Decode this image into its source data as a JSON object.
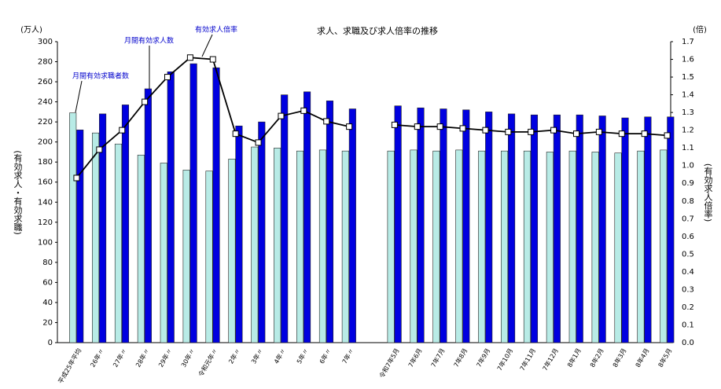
{
  "chart_data": {
    "type": "bar-line",
    "title": "求人、求職及び求人倍率の推移",
    "y_unit": "(万人)",
    "y2_unit": "(倍)",
    "ylabel": "(有効求人・有効求職)",
    "y2label": "(有効求人倍率)",
    "categories": [
      "平成25年平均",
      "26年〃",
      "27年〃",
      "28年〃",
      "29年〃",
      "30年〃",
      "令和元年〃",
      "2年〃",
      "3年〃",
      "4年〃",
      "5年〃",
      "6年〃",
      "7年〃",
      null,
      "令和7年5月",
      "7年6月",
      "7年7月",
      "7年8月",
      "7年9月",
      "7年10月",
      "7年11月",
      "7年12月",
      "8年1月",
      "8年2月",
      "8年3月",
      "8年4月",
      "8年5月"
    ],
    "series": [
      {
        "name": "月間有効求職者数",
        "color": "#b8ebe6",
        "values": [
          229,
          209,
          198,
          187,
          179,
          172,
          171,
          183,
          195,
          194,
          191,
          192,
          191,
          null,
          191,
          192,
          191,
          192,
          191,
          191,
          191,
          190,
          191,
          190,
          189,
          191,
          192
        ]
      },
      {
        "name": "月間有効求人数",
        "color": "#0000e0",
        "values": [
          212,
          228,
          237,
          253,
          270,
          278,
          274,
          216,
          220,
          247,
          250,
          241,
          233,
          null,
          236,
          234,
          233,
          232,
          230,
          228,
          227,
          227,
          227,
          226,
          224,
          225,
          225
        ]
      },
      {
        "name": "有効求人倍率",
        "color": "#000000",
        "axis": "y2",
        "values": [
          0.93,
          1.09,
          1.2,
          1.36,
          1.5,
          1.61,
          1.6,
          1.18,
          1.13,
          1.28,
          1.31,
          1.25,
          1.22,
          null,
          1.23,
          1.22,
          1.22,
          1.21,
          1.2,
          1.19,
          1.19,
          1.2,
          1.18,
          1.19,
          1.18,
          1.18,
          1.17
        ]
      }
    ],
    "ylim": [
      0,
      300
    ],
    "yticks": [
      0,
      20,
      40,
      60,
      80,
      100,
      120,
      140,
      160,
      180,
      200,
      220,
      240,
      260,
      280,
      300
    ],
    "y2lim": [
      0,
      1.7
    ],
    "y2ticks": [
      {
        "value": 0,
        "label": "0.0"
      },
      0.1,
      0.2,
      0.3,
      0.4,
      0.5,
      0.6,
      0.7,
      0.8,
      0.9,
      {
        "value": 1,
        "label": "1.0"
      },
      1.1,
      1.2,
      1.3,
      1.4,
      1.5,
      1.6,
      1.7
    ],
    "grid": false
  }
}
